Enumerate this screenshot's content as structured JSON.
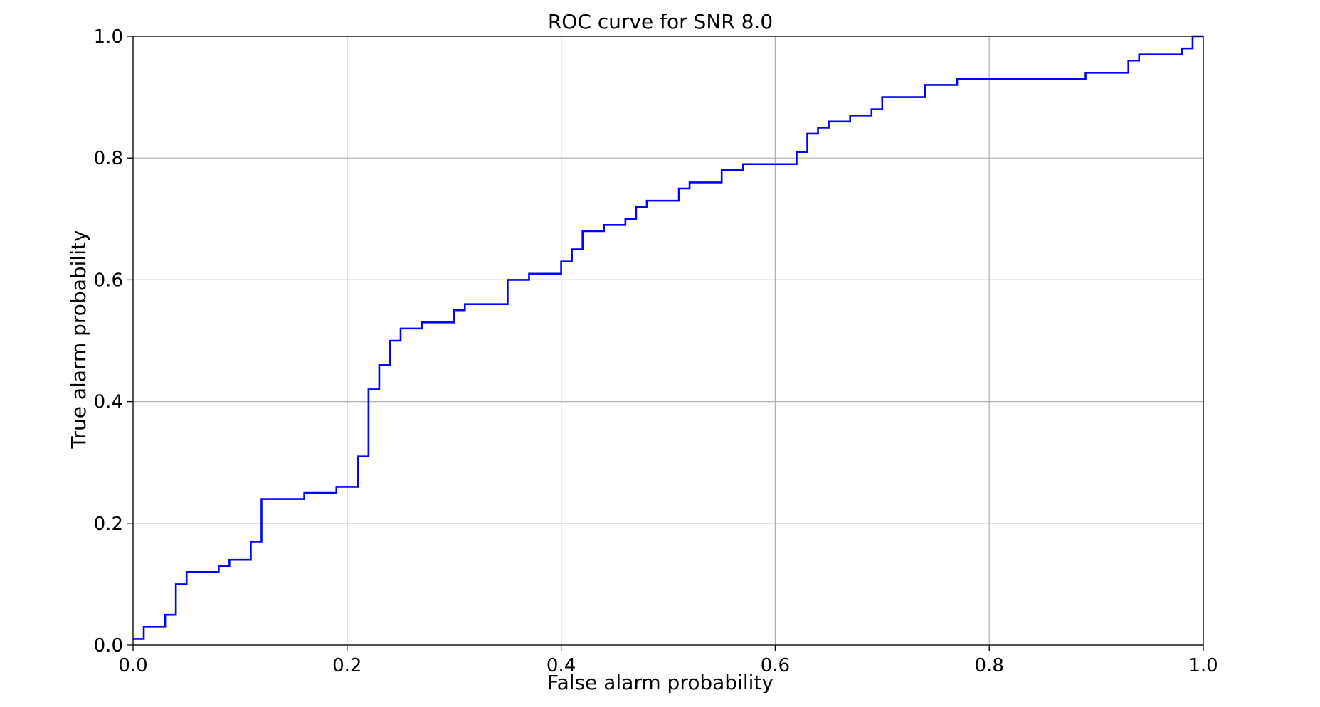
{
  "chart_data": {
    "type": "line",
    "title": "ROC curve for SNR 8.0",
    "xlabel": "False alarm probability",
    "ylabel": "True alarm probability",
    "xlim": [
      0.0,
      1.0
    ],
    "ylim": [
      0.0,
      1.0
    ],
    "grid": true,
    "line_color": "#0000ff",
    "step": "post",
    "xticks": [
      0.0,
      0.2,
      0.4,
      0.6,
      0.8,
      1.0
    ],
    "xtick_labels": [
      "0.0",
      "0.2",
      "0.4",
      "0.6",
      "0.8",
      "1.0"
    ],
    "yticks": [
      0.0,
      0.2,
      0.4,
      0.6,
      0.8,
      1.0
    ],
    "ytick_labels": [
      "0.0",
      "0.2",
      "0.4",
      "0.6",
      "0.8",
      "1.0"
    ],
    "series": [
      {
        "x": [
          0.0,
          0.01,
          0.03,
          0.04,
          0.05,
          0.08,
          0.09,
          0.11,
          0.12,
          0.16,
          0.19,
          0.21,
          0.22,
          0.23,
          0.24,
          0.25,
          0.27,
          0.3,
          0.31,
          0.35,
          0.37,
          0.4,
          0.41,
          0.42,
          0.44,
          0.46,
          0.47,
          0.48,
          0.51,
          0.52,
          0.55,
          0.57,
          0.62,
          0.63,
          0.64,
          0.65,
          0.67,
          0.69,
          0.7,
          0.74,
          0.77,
          0.89,
          0.93,
          0.94,
          0.98,
          0.99,
          1.0
        ],
        "y": [
          0.01,
          0.03,
          0.05,
          0.1,
          0.12,
          0.13,
          0.14,
          0.17,
          0.24,
          0.25,
          0.26,
          0.31,
          0.42,
          0.46,
          0.5,
          0.52,
          0.53,
          0.55,
          0.56,
          0.6,
          0.61,
          0.63,
          0.65,
          0.68,
          0.69,
          0.7,
          0.72,
          0.73,
          0.75,
          0.76,
          0.78,
          0.79,
          0.81,
          0.84,
          0.85,
          0.86,
          0.87,
          0.88,
          0.9,
          0.92,
          0.93,
          0.94,
          0.96,
          0.97,
          0.98,
          1.0,
          1.0
        ]
      }
    ]
  }
}
